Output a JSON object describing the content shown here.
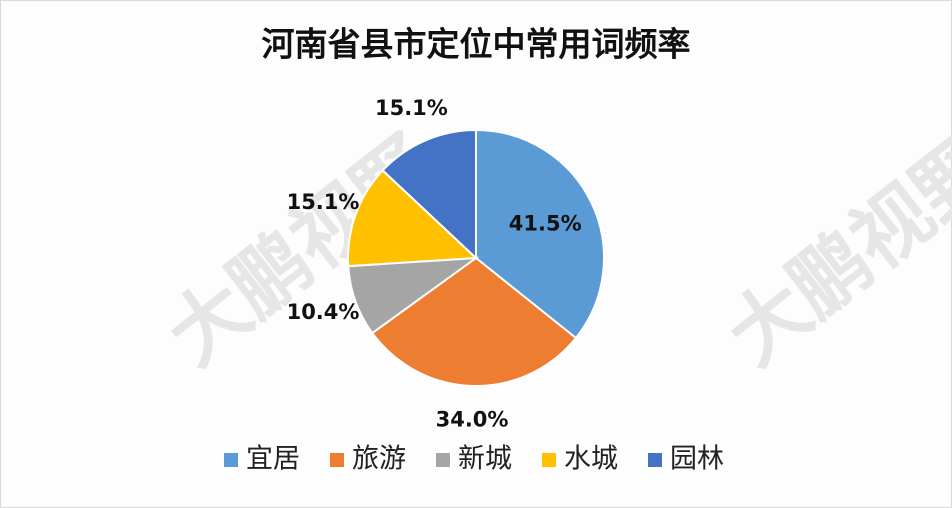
{
  "chart_data": {
    "type": "pie",
    "title": "河南省县市定位中常用词频率",
    "categories": [
      "宜居",
      "旅游",
      "新城",
      "水城",
      "园林"
    ],
    "values": [
      41.5,
      34.0,
      10.4,
      15.1,
      15.1
    ],
    "value_labels": [
      "41.5%",
      "34.0%",
      "10.4%",
      "15.1%",
      "15.1%"
    ],
    "colors": [
      "#5b9bd5",
      "#ed7d31",
      "#a5a5a5",
      "#ffc000",
      "#4472c4"
    ],
    "legend": "bottom",
    "watermark": "大鹏视野"
  }
}
